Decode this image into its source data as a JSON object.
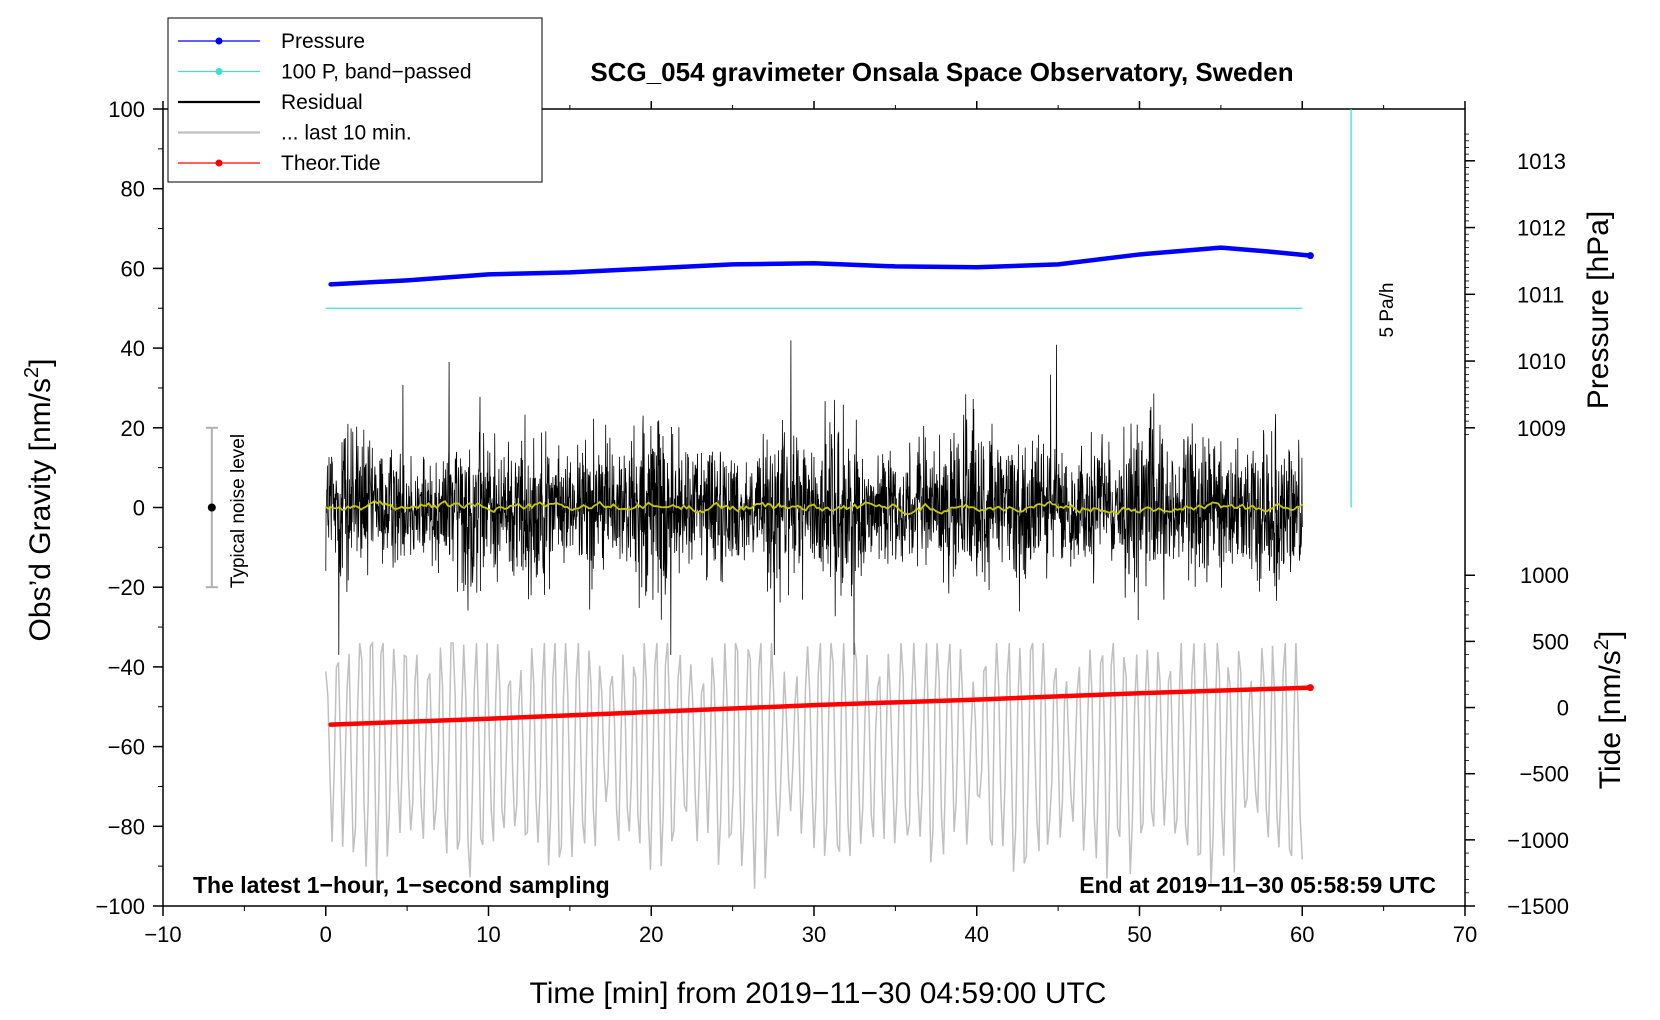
{
  "chart_data": {
    "type": "line",
    "title": "SCG_054 gravimeter Onsala Space Observatory, Sweden",
    "xlabel": "Time [min] from 2019−11−30 04:59:00 UTC",
    "ylabel_left_main": "Obs’d Gravity [nm/s",
    "ylabel_left_sup": "2",
    "ylabel_left_close": "]",
    "ylabel_right_pressure": "Pressure [hPa]",
    "ylabel_right_tide_main": "Tide [nm/s",
    "ylabel_right_tide_sup": "2",
    "ylabel_right_tide_close": "]",
    "xlim": [
      -10,
      70
    ],
    "ylim": [
      -100,
      100
    ],
    "x_ticks": [
      -10,
      0,
      10,
      20,
      30,
      40,
      50,
      60,
      70
    ],
    "x_tick_labels": [
      "−10",
      "0",
      "10",
      "20",
      "30",
      "40",
      "50",
      "60",
      "70"
    ],
    "y_ticks": [
      -100,
      -80,
      -60,
      -40,
      -20,
      0,
      20,
      40,
      60,
      80,
      100
    ],
    "y_tick_labels": [
      "−100",
      "−80",
      "−60",
      "−40",
      "−20",
      "0",
      "20",
      "40",
      "60",
      "80",
      "100"
    ],
    "pressure_axis": {
      "ticks": [
        1009,
        1010,
        1011,
        1012,
        1013
      ],
      "tick_labels": [
        "1009",
        "1010",
        "1011",
        "1012",
        "1013"
      ],
      "maps_to_gravity": {
        "value_a": 1009,
        "gravity_a": 20,
        "value_b": 1013,
        "gravity_b": 87
      }
    },
    "tide_axis": {
      "ticks": [
        -1500,
        -1000,
        -500,
        0,
        500,
        1000
      ],
      "tick_labels": [
        "−1500",
        "−1000",
        "−500",
        "0",
        "500",
        "1000"
      ],
      "maps_to_gravity": {
        "value_a": -1500,
        "gravity_a": -100,
        "value_b": 1000,
        "gravity_b": -17
      }
    },
    "legend": {
      "position": "top-left",
      "entries": [
        {
          "label": "Pressure",
          "color": "#0000ff",
          "marker": "dot"
        },
        {
          "label": "100 P, band−passed",
          "color": "#40e0d0",
          "marker": "dot"
        },
        {
          "label": "Residual",
          "color": "#000000",
          "marker": "none"
        },
        {
          "label": "... last 10 min.",
          "color": "#c0c0c0",
          "marker": "none"
        },
        {
          "label": "Theor.Tide",
          "color": "#ff0000",
          "marker": "dot"
        }
      ]
    },
    "annotations": {
      "bottom_left": "The latest 1−hour, 1−second sampling",
      "bottom_right": "End at 2019−11−30 05:58:59 UTC",
      "noise_label": "Typical noise level",
      "pa_label": "5 Pa/h"
    },
    "noise_bar": {
      "x": -7,
      "center": 0,
      "low": -20,
      "high": 20
    },
    "pa_scale_bar": {
      "x": 63,
      "low": 0,
      "high": 100
    },
    "series": [
      {
        "name": "Pressure",
        "color": "#0000ff",
        "axis": "gravity-mapped",
        "x": [
          0.3,
          5,
          10,
          15,
          20,
          25,
          30,
          35,
          40,
          45,
          50,
          55,
          58,
          60.5
        ],
        "values": [
          56,
          57,
          58.5,
          59,
          60,
          61,
          61.3,
          60.5,
          60.3,
          61,
          63.5,
          65.2,
          64.2,
          63.2
        ]
      },
      {
        "name": "100 P, band−passed",
        "color": "#40e0d0",
        "x": [
          0,
          60
        ],
        "values": [
          50,
          50
        ]
      },
      {
        "name": "Theor.Tide",
        "color": "#ff0000",
        "x": [
          0.3,
          10,
          20,
          30,
          40,
          50,
          60.5
        ],
        "values": [
          -54.5,
          -53,
          -51.3,
          -49.6,
          -48.2,
          -46.6,
          -45.2
        ]
      },
      {
        "name": "Residual",
        "color": "#000000",
        "x_range": [
          0,
          60
        ],
        "mean": 0,
        "amplitude_typical": 10,
        "min": -37,
        "max": 46
      },
      {
        "name": "Residual smoothed",
        "color": "#c8c800",
        "x_range": [
          0,
          60
        ],
        "mean": 0.5,
        "amplitude_typical": 1
      },
      {
        "name": "... last 10 min.",
        "color": "#c0c0c0",
        "x_range": [
          0,
          60
        ],
        "center": -60,
        "min": -99,
        "max": -34
      }
    ]
  }
}
